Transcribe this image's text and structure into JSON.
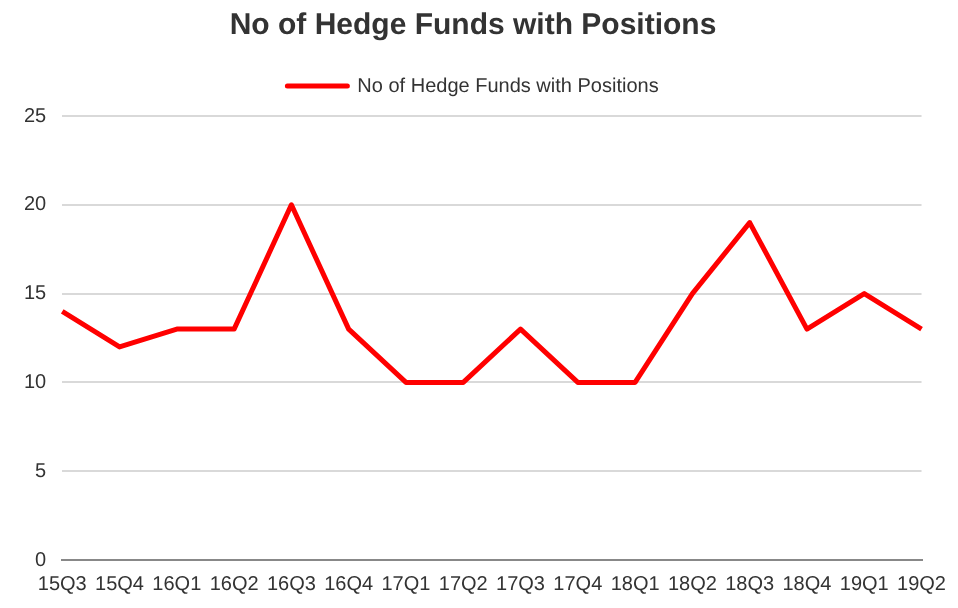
{
  "chart_data": {
    "type": "line",
    "title": "No of Hedge Funds with Positions",
    "categories": [
      "15Q3",
      "15Q4",
      "16Q1",
      "16Q2",
      "16Q3",
      "16Q4",
      "17Q1",
      "17Q2",
      "17Q3",
      "17Q4",
      "18Q1",
      "18Q2",
      "18Q3",
      "18Q4",
      "19Q1",
      "19Q2"
    ],
    "series": [
      {
        "name": "No of Hedge Funds with Positions",
        "color": "#ff0000",
        "values": [
          14,
          12,
          13,
          13,
          20,
          13,
          10,
          10,
          13,
          10,
          10,
          15,
          19,
          13,
          15,
          13
        ]
      }
    ],
    "ylim": [
      0,
      25
    ],
    "yticks": [
      0,
      5,
      10,
      15,
      20,
      25
    ],
    "grid": "y",
    "legend": "top",
    "marker": "none",
    "line_style": "solid"
  }
}
